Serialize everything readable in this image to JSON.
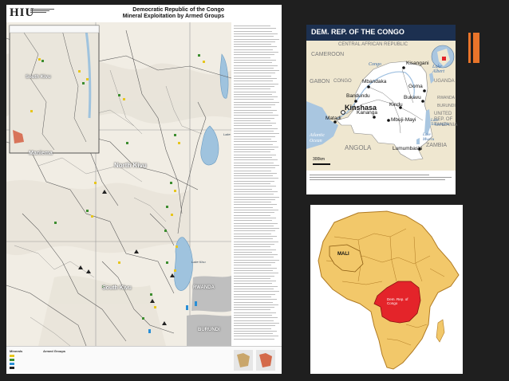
{
  "big_map": {
    "agency": "HIU",
    "title_line1": "Democratic Republic of the Congo",
    "title_line2": "Mineral Exploitation by Armed Groups",
    "provinces": [
      "South Kivu",
      "Maniema",
      "North Kivu",
      "South Kivu",
      "RWANDA",
      "BURUNDI"
    ],
    "lakes": [
      "Lake Edward",
      "Lake Kivu"
    ],
    "legend_headers": [
      "Minerals",
      "Armed Groups"
    ],
    "colors": {
      "map_bg": "#f4f1ea",
      "lake": "#9fc3de",
      "road": "#444444",
      "mineral_green": "#3c8d2f",
      "mineral_yellow": "#e7c61d"
    }
  },
  "drc_map": {
    "title": "DEM. REP. OF THE CONGO",
    "countries": [
      "CENTRAL AFRICAN REPUBLIC",
      "CAMEROON",
      "GABON",
      "CONGO",
      "UGANDA",
      "RWANDA",
      "BURUNDI",
      "UNITED REP. OF TANZANIA",
      "ANGOLA",
      "ZAMBIA"
    ],
    "capital": "Kinshasa",
    "cities": [
      "Kisangani",
      "Mbandaka",
      "Goma",
      "Bukavu",
      "Bandundu",
      "Kindu",
      "Kananga",
      "Mbuji-Mayi",
      "Matadi",
      "Lumumbashi"
    ],
    "waters": [
      "Atlantic Ocean",
      "Lake Albert",
      "Lake Tanganyika",
      "Lake Mweru"
    ],
    "rivers": [
      "Congo"
    ],
    "scale": "300km",
    "colors": {
      "header": "#1c3050",
      "land": "#efe7d0",
      "drc": "#ffffff",
      "ocean": "#a9c6e0"
    }
  },
  "africa_map": {
    "labels": [
      "MALI",
      "Dem. Rep. of Congo"
    ],
    "colors": {
      "africa": "#f2c86a",
      "drc": "#e4242a",
      "border": "#b07a22"
    }
  },
  "accent_color": "#e8742a"
}
